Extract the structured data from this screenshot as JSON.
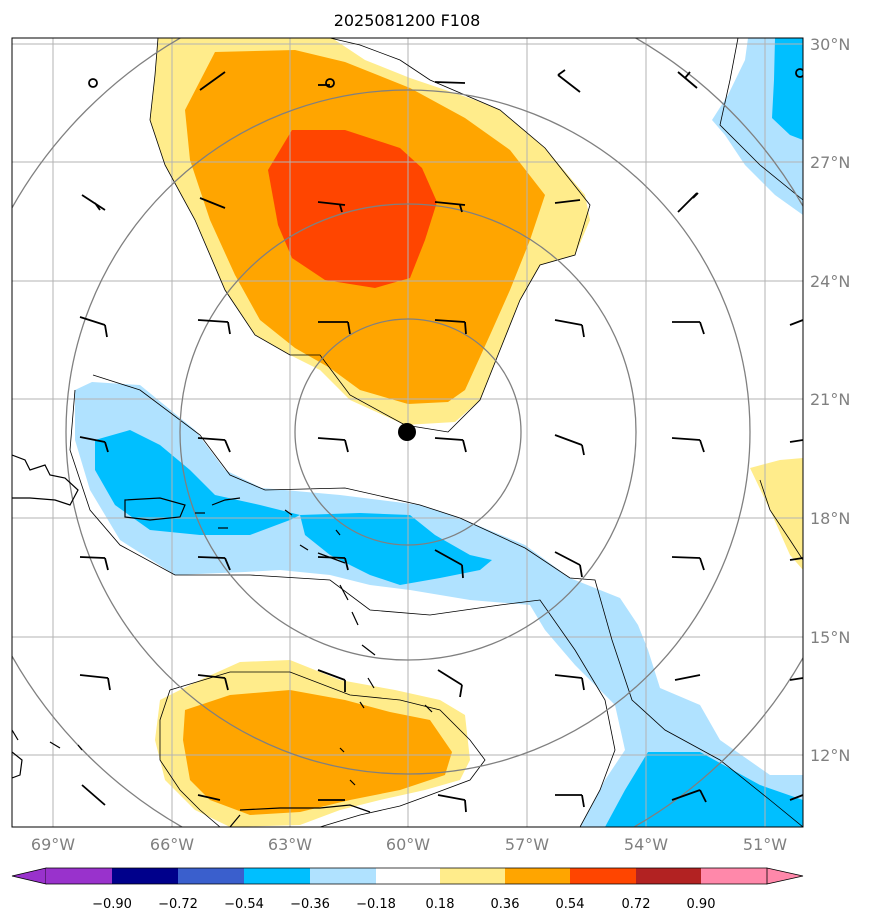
{
  "title": "2025081200 F108",
  "longitude_labels": [
    "69°W",
    "66°W",
    "63°W",
    "60°W",
    "57°W",
    "54°W",
    "51°W"
  ],
  "latitude_labels": [
    "30°N",
    "27°N",
    "24°N",
    "21°N",
    "18°N",
    "15°N",
    "12°N"
  ],
  "colorbar": {
    "labels": [
      "−0.90",
      "−0.72",
      "−0.54",
      "−0.36",
      "−0.18",
      "0.18",
      "0.36",
      "0.54",
      "0.72",
      "0.90"
    ],
    "colors": [
      "#9932cc",
      "#00008b",
      "#3a5fcd",
      "#00bfff",
      "#b0e2ff",
      "#ffffff",
      "#ffec8b",
      "#ffa500",
      "#ff4500",
      "#b22222",
      "#ff88aa"
    ]
  },
  "fill_colors": {
    "light_yellow": "#ffec8b",
    "orange": "#ffa500",
    "red_orange": "#ff4500",
    "light_blue": "#b0e2ff",
    "deep_sky_blue": "#00bfff"
  },
  "center_marker": {
    "lon": "60°W",
    "lat": "20.5°N"
  }
}
